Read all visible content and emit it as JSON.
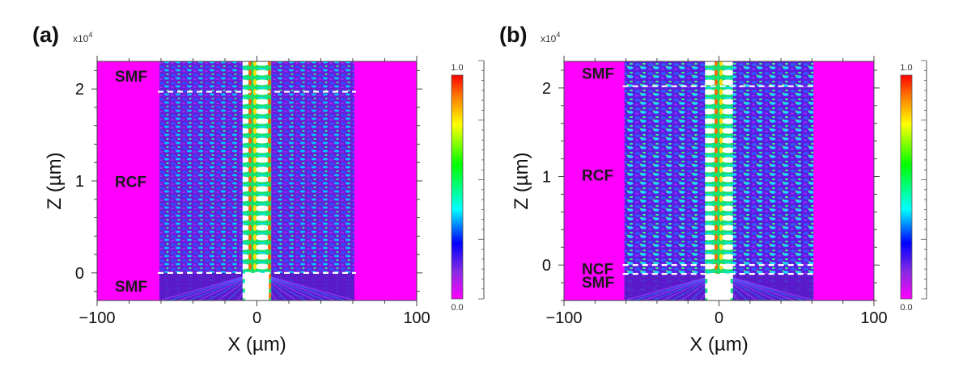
{
  "figure": {
    "panels": [
      {
        "id": "a",
        "panel_label": "(a)",
        "y_multiplier": "x10",
        "y_multiplier_exp": "4",
        "xlabel": "X (µm)",
        "ylabel": "Z (µm)",
        "x_ticks": [
          "−100",
          "0",
          "100"
        ],
        "y_ticks": [
          "0",
          "1",
          "2"
        ],
        "colorbar_max": "1.0",
        "colorbar_min": "0.0",
        "regions": [
          {
            "name": "SMF",
            "z_from": -0.3,
            "z_to": 0
          },
          {
            "name": "RCF",
            "z_from": 0,
            "z_to": 1.97
          },
          {
            "name": "SMF",
            "z_from": 1.97,
            "z_to": 2.3
          }
        ]
      },
      {
        "id": "b",
        "panel_label": "(b)",
        "y_multiplier": "x10",
        "y_multiplier_exp": "4",
        "xlabel": "X (µm)",
        "ylabel": "Z (µm)",
        "x_ticks": [
          "−100",
          "0",
          "100"
        ],
        "y_ticks": [
          "0",
          "1",
          "2"
        ],
        "colorbar_max": "1.0",
        "colorbar_min": "0.0",
        "regions": [
          {
            "name": "SMF",
            "z_from": -0.3,
            "z_to": -0.1
          },
          {
            "name": "NCF",
            "z_from": -0.1,
            "z_to": 0
          },
          {
            "name": "RCF",
            "z_from": 0,
            "z_to": 2.02
          },
          {
            "name": "SMF",
            "z_from": 2.02,
            "z_to": 2.3
          }
        ]
      }
    ]
  },
  "chart_data": [
    {
      "type": "heatmap",
      "panel": "(a)",
      "xlabel": "X (µm)",
      "ylabel": "Z (µm)",
      "y_scale_factor": 10000,
      "xlim": [
        -100,
        100
      ],
      "ylim": [
        -0.3,
        2.3
      ],
      "x_ticks": [
        -100,
        0,
        100
      ],
      "y_ticks": [
        0,
        1,
        2
      ],
      "colorbar": {
        "min": 0.0,
        "max": 1.0,
        "colormap": "rainbow (magenta-blue-cyan-green-yellow-red)"
      },
      "background_color": "#ff00ff",
      "field_region_x": [
        -61,
        61
      ],
      "core_x": [
        -9,
        9
      ],
      "interfaces_z": [
        0,
        1.97
      ],
      "interface_line_style": "white dashed"
    },
    {
      "type": "heatmap",
      "panel": "(b)",
      "xlabel": "X (µm)",
      "ylabel": "Z (µm)",
      "y_scale_factor": 10000,
      "xlim": [
        -100,
        100
      ],
      "ylim": [
        -0.4,
        2.3
      ],
      "x_ticks": [
        -100,
        0,
        100
      ],
      "y_ticks": [
        0,
        1,
        2
      ],
      "colorbar": {
        "min": 0.0,
        "max": 1.0,
        "colormap": "rainbow (magenta-blue-cyan-green-yellow-red)"
      },
      "background_color": "#ff00ff",
      "field_region_x": [
        -61,
        61
      ],
      "core_x": [
        -9,
        9
      ],
      "interfaces_z": [
        -0.1,
        0,
        2.02
      ],
      "interface_line_style": "white dashed"
    }
  ]
}
